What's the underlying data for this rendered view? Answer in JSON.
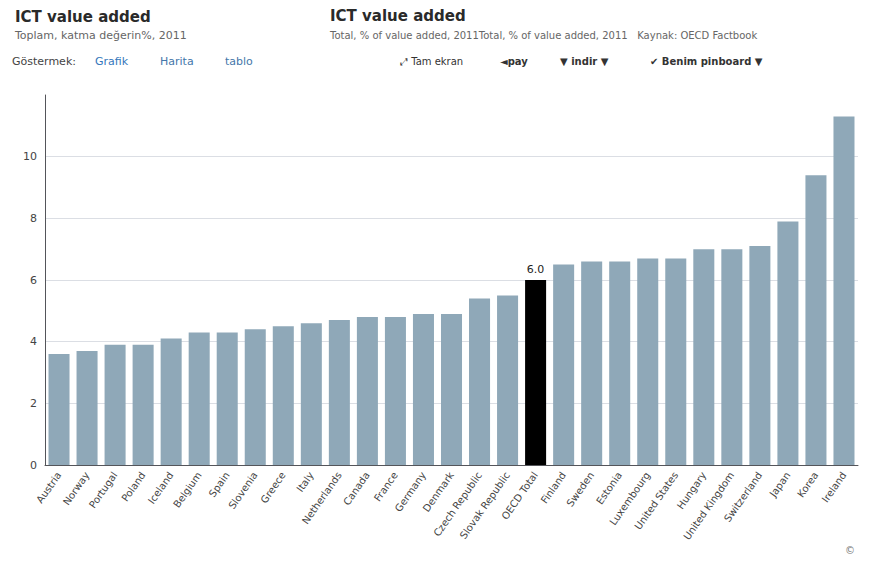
{
  "chart_data": {
    "type": "bar",
    "title": "ICT value added",
    "subtitle": "Toplam, katma değerin%, 2011",
    "annotations": [
      "ICT value added",
      "Total, % of value added, 2011Total, % of value added, 2011   Kaynak: OECD Factbook",
      "Göstermek:",
      "Grafik",
      "Harita",
      "tablo",
      "⤢ Tam ekran",
      "◄pay",
      "▼ indir ▼",
      "✔ Benim pinboard ▼",
      "©"
    ],
    "categories": [
      "Austria",
      "Norway",
      "Portugal",
      "Poland",
      "Iceland",
      "Belgium",
      "Spain",
      "Slovenia",
      "Greece",
      "Italy",
      "Netherlands",
      "Canada",
      "France",
      "Germany",
      "Denmark",
      "Czech Republic",
      "Slovak Republic",
      "OECD Total",
      "Finland",
      "Sweden",
      "Estonia",
      "Luxembourg",
      "United States",
      "Hungary",
      "United Kingdom",
      "Switzerland",
      "Japan",
      "Korea",
      "Ireland"
    ],
    "values": [
      3.6,
      3.7,
      3.9,
      3.9,
      4.1,
      4.3,
      4.3,
      4.4,
      4.5,
      4.6,
      4.7,
      4.8,
      4.8,
      4.9,
      4.9,
      5.4,
      5.5,
      6.0,
      6.5,
      6.6,
      6.6,
      6.7,
      6.7,
      7.0,
      7.0,
      7.1,
      7.9,
      9.4,
      11.3
    ],
    "value_labels": [
      null,
      null,
      null,
      null,
      null,
      null,
      null,
      null,
      null,
      null,
      null,
      null,
      null,
      null,
      null,
      null,
      null,
      "6.0",
      null,
      null,
      null,
      null,
      null,
      null,
      null,
      null,
      null,
      null,
      null
    ],
    "colors": [
      "#8fa8b8",
      "#8fa8b8",
      "#8fa8b8",
      "#8fa8b8",
      "#8fa8b8",
      "#8fa8b8",
      "#8fa8b8",
      "#8fa8b8",
      "#8fa8b8",
      "#8fa8b8",
      "#8fa8b8",
      "#8fa8b8",
      "#8fa8b8",
      "#8fa8b8",
      "#8fa8b8",
      "#8fa8b8",
      "#8fa8b8",
      "#000000",
      "#8fa8b8",
      "#8fa8b8",
      "#8fa8b8",
      "#8fa8b8",
      "#8fa8b8",
      "#8fa8b8",
      "#8fa8b8",
      "#8fa8b8",
      "#8fa8b8",
      "#8fa8b8",
      "#8fa8b8"
    ],
    "ylim": [
      0,
      12
    ],
    "yticks": [
      0,
      2,
      4,
      6,
      8,
      10
    ],
    "grid": true
  }
}
